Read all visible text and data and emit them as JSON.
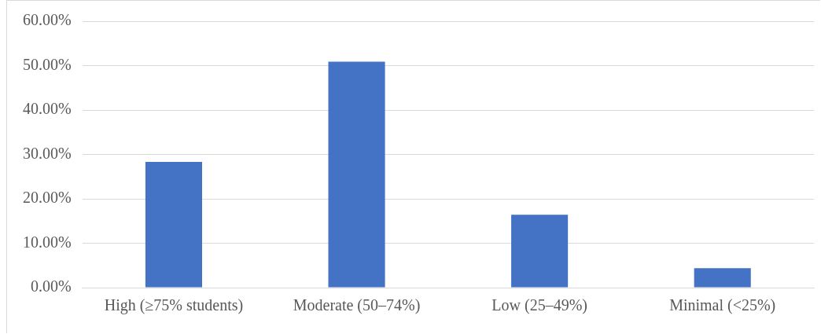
{
  "chart_data": {
    "type": "bar",
    "categories": [
      "High (≥75% students)",
      "Moderate (50–74%)",
      "Low (25–49%)",
      "Minimal (<25%)"
    ],
    "values": [
      28.3,
      50.9,
      16.4,
      4.4
    ],
    "color": "#4472c4",
    "ylim": [
      0,
      60
    ],
    "yticks": [
      {
        "value": 0,
        "label": "0.00%"
      },
      {
        "value": 10,
        "label": "10.00%"
      },
      {
        "value": 20,
        "label": "20.00%"
      },
      {
        "value": 30,
        "label": "30.00%"
      },
      {
        "value": 40,
        "label": "40.00%"
      },
      {
        "value": 50,
        "label": "50.00%"
      },
      {
        "value": 60,
        "label": "60.00%"
      }
    ],
    "grid": "y"
  }
}
